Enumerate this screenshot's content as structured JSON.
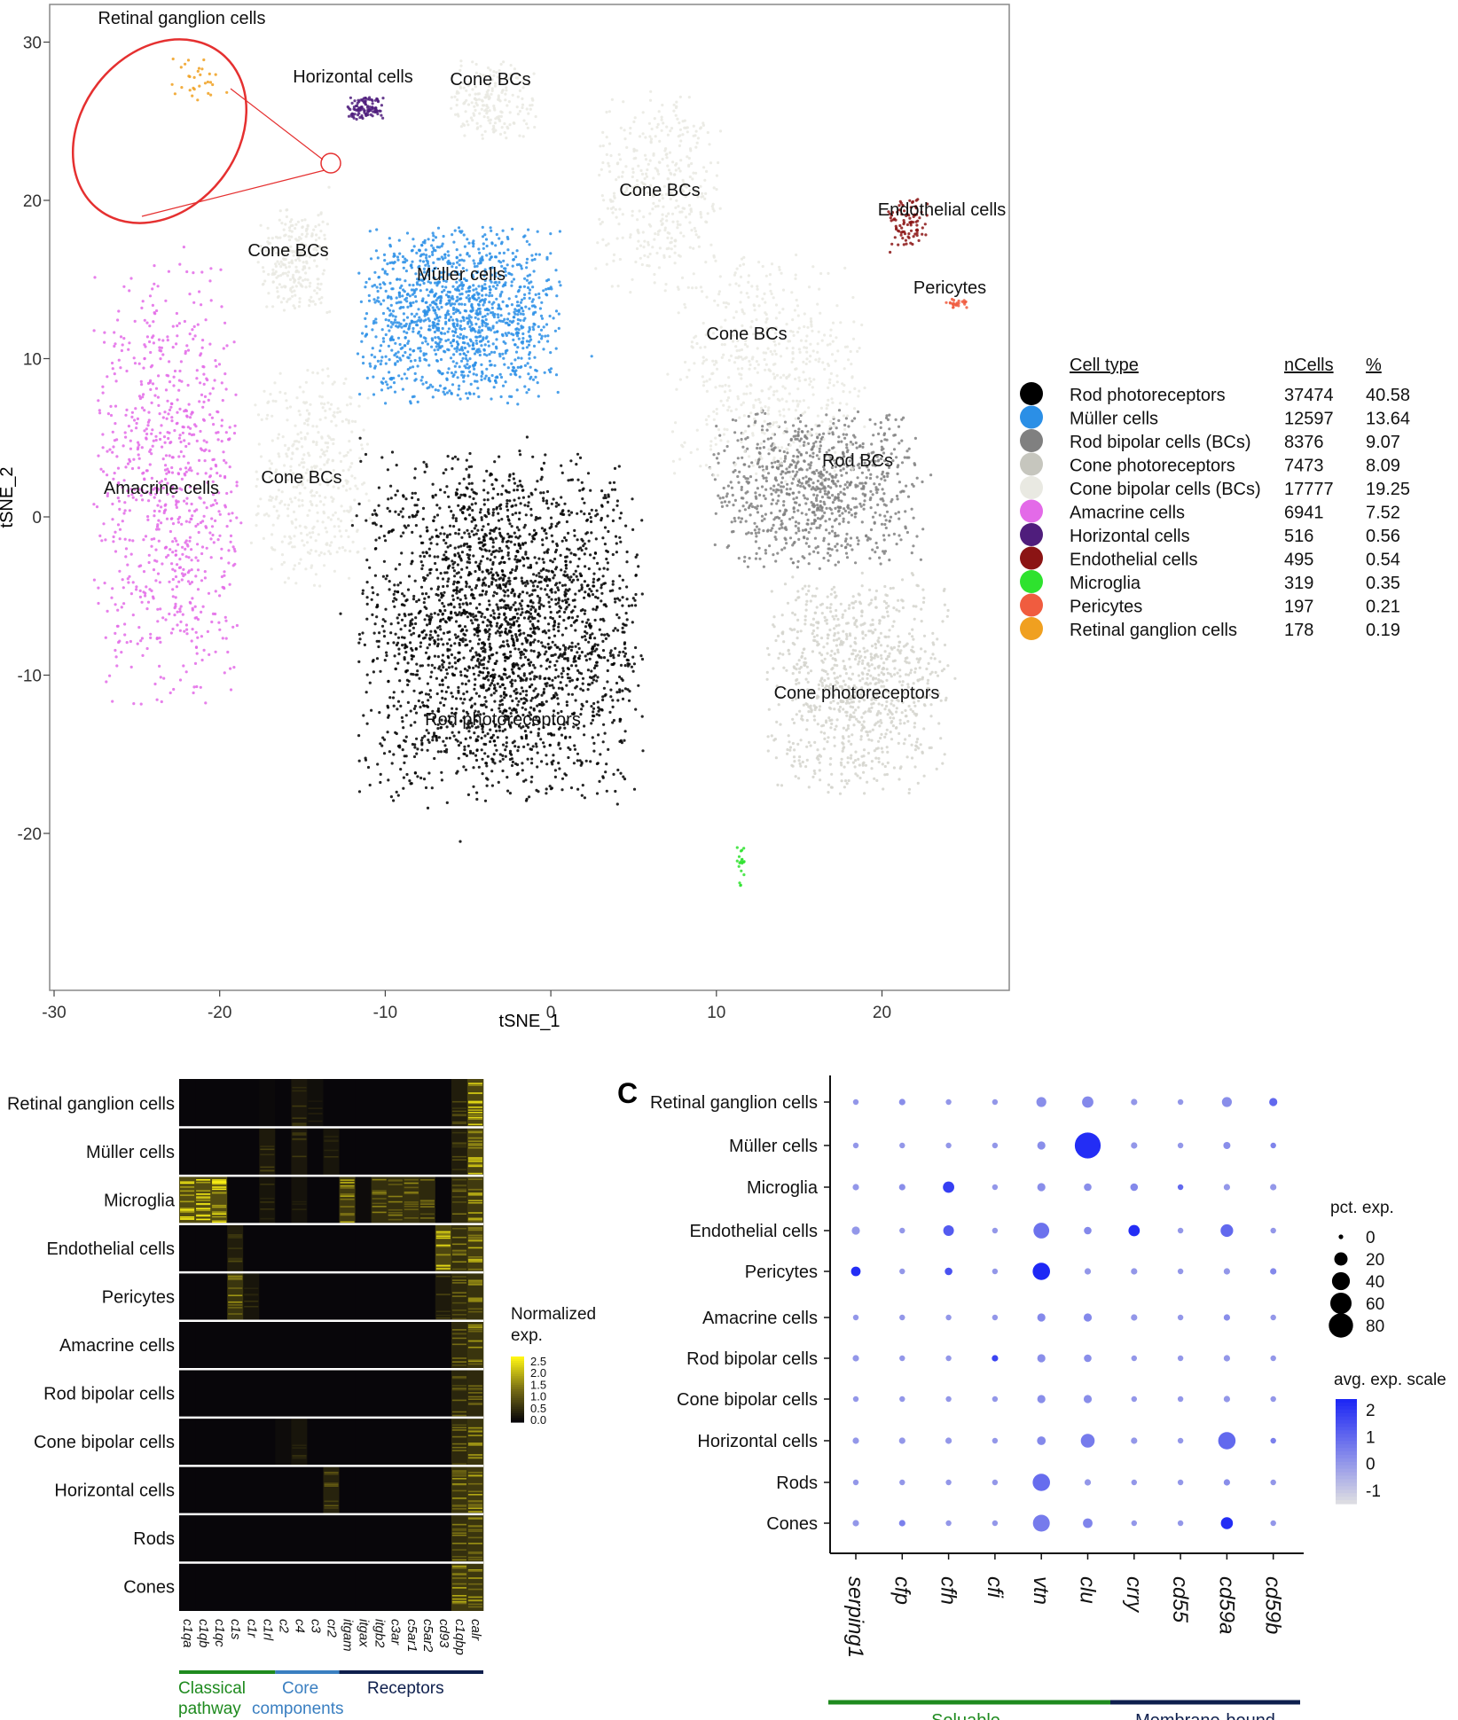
{
  "chart_data": [
    {
      "type": "scatter",
      "xlabel": "tSNE_1",
      "ylabel": "tSNE_2",
      "xlim": [
        -30,
        28
      ],
      "ylim": [
        -29,
        32
      ],
      "xticks": [
        -30,
        -20,
        -10,
        0,
        10,
        20
      ],
      "yticks": [
        -20,
        -10,
        0,
        10,
        20,
        30
      ],
      "grid": false,
      "clusters": [
        {
          "label": "Rod photoreceptors",
          "color": "#000000",
          "center": [
            -3,
            -7
          ],
          "spread": [
            8.6,
            11.2
          ],
          "n": 2600
        },
        {
          "label": "Müller cells",
          "color": "#2b8fe6",
          "center": [
            -5.5,
            12.7
          ],
          "spread": [
            6.2,
            5.6
          ],
          "n": 1300
        },
        {
          "label": "Rod BCs",
          "color": "#808080",
          "center": [
            16,
            1.8
          ],
          "spread": [
            6.5,
            5.0
          ],
          "n": 900
        },
        {
          "label": "Cone photoreceptors",
          "color": "#d4d4cc",
          "center": [
            18.5,
            -10.5
          ],
          "spread": [
            5.5,
            7.0
          ],
          "n": 900
        },
        {
          "label": "Cone BCs",
          "color": "#e9e9e2",
          "center": [
            -15.5,
            16.2
          ],
          "spread": [
            2.2,
            3.6
          ],
          "n": 250
        },
        {
          "label": "Cone BCs",
          "color": "#e9e9e2",
          "center": [
            -14.5,
            2.5
          ],
          "spread": [
            3.6,
            7.0
          ],
          "n": 400
        },
        {
          "label": "Cone BCs",
          "color": "#e9e9e2",
          "center": [
            -3.5,
            26.3
          ],
          "spread": [
            2.6,
            2.6
          ],
          "n": 200
        },
        {
          "label": "Cone BCs",
          "color": "#e9e9e2",
          "center": [
            6.5,
            20.5
          ],
          "spread": [
            3.8,
            6.4
          ],
          "n": 380
        },
        {
          "label": "Cone BCs",
          "color": "#e9e9e2",
          "center": [
            13,
            9.5
          ],
          "spread": [
            6.0,
            7.6
          ],
          "n": 520
        },
        {
          "label": "Amacrine cells",
          "color": "#e36ae8",
          "center": [
            -23,
            2
          ],
          "spread": [
            4.6,
            14.0
          ],
          "n": 800
        },
        {
          "label": "Horizontal cells",
          "color": "#4f1d7c",
          "center": [
            -11.2,
            25.8
          ],
          "spread": [
            1.1,
            0.7
          ],
          "n": 110
        },
        {
          "label": "Endothelial cells",
          "color": "#8b1414",
          "center": [
            21.5,
            18.5
          ],
          "spread": [
            1.4,
            1.8
          ],
          "n": 90
        },
        {
          "label": "Pericytes",
          "color": "#f05c3f",
          "center": [
            24.5,
            13.5
          ],
          "spread": [
            0.8,
            0.3
          ],
          "n": 25
        },
        {
          "label": "Microglia",
          "color": "#2ee22e",
          "center": [
            11.5,
            -22
          ],
          "spread": [
            0.3,
            1.5
          ],
          "n": 20
        },
        {
          "label": "Retinal ganglion cells",
          "color": "#f0a020",
          "center": [
            -21.5,
            27.5
          ],
          "spread": [
            1.5,
            1.5
          ],
          "n": 30
        }
      ],
      "annotations": [
        "Retinal ganglion cells",
        "Horizontal cells",
        "Cone BCs",
        "Cone BCs",
        "Endothelial cells",
        "Cone BCs",
        "Müller cells",
        "Pericytes",
        "Cone BCs",
        "Rod BCs",
        "Amacrine cells",
        "Cone BCs",
        "Cone photoreceptors",
        "Rod photoreceptors"
      ],
      "legend": {
        "position": "right",
        "headers": [
          "Cell type",
          "nCells",
          "%"
        ],
        "rows": [
          {
            "color": "#000000",
            "type": "Rod photoreceptors",
            "n": "37474",
            "pct": "40.58"
          },
          {
            "color": "#2b8fe6",
            "type": "Müller cells",
            "n": "12597",
            "pct": "13.64"
          },
          {
            "color": "#808080",
            "type": "Rod bipolar cells (BCs)",
            "n": "8376",
            "pct": "9.07"
          },
          {
            "color": "#c6c6be",
            "type": "Cone photoreceptors",
            "n": "7473",
            "pct": "8.09"
          },
          {
            "color": "#e9e9e2",
            "type": "Cone bipolar cells (BCs)",
            "n": "17777",
            "pct": "19.25"
          },
          {
            "color": "#e36ae8",
            "type": "Amacrine cells",
            "n": "6941",
            "pct": "7.52"
          },
          {
            "color": "#4f1d7c",
            "type": "Horizontal cells",
            "n": "516",
            "pct": "0.56"
          },
          {
            "color": "#8b1414",
            "type": "Endothelial cells",
            "n": "495",
            "pct": "0.54"
          },
          {
            "color": "#2ee22e",
            "type": "Microglia",
            "n": "319",
            "pct": "0.35"
          },
          {
            "color": "#f05c3f",
            "type": "Pericytes",
            "n": "197",
            "pct": "0.21"
          },
          {
            "color": "#f0a020",
            "type": "Retinal ganglion cells",
            "n": "178",
            "pct": "0.19"
          }
        ]
      }
    },
    {
      "type": "heatmap",
      "rows": [
        "Retinal ganglion cells",
        "Müller cells",
        "Microglia",
        "Endothelial cells",
        "Pericytes",
        "Amacrine cells",
        "Rod bipolar cells",
        "Cone bipolar cells",
        "Horizontal cells",
        "Rods",
        "Cones"
      ],
      "columns": [
        "c1qa",
        "c1qb",
        "c1qc",
        "c1s",
        "c1r",
        "c1rl",
        "c2",
        "c4",
        "c3",
        "cr2",
        "itgam",
        "itgax",
        "itgb2",
        "c3ar",
        "c5ar1",
        "c5ar2",
        "cd93",
        "c1qbp",
        "calr"
      ],
      "groups": [
        {
          "label": "Classical pathway",
          "color": "#1e8a1e"
        },
        {
          "label": "Core components",
          "color": "#3a7fc1"
        },
        {
          "label": "Receptors",
          "color": "#0e1f4d"
        }
      ],
      "colorbar": {
        "title": "Normalized exp.",
        "ticks": [
          "2.5",
          "2.0",
          "1.5",
          "1.0",
          "0.5",
          "0.0"
        ],
        "range": [
          0,
          2.5
        ]
      },
      "values": [
        [
          0,
          0,
          0,
          0,
          0,
          0.1,
          0,
          0.6,
          0.3,
          0,
          0,
          0,
          0,
          0,
          0,
          0,
          0,
          0.8,
          2.2
        ],
        [
          0,
          0,
          0,
          0,
          0,
          0.7,
          0,
          0.6,
          0,
          0.5,
          0,
          0,
          0,
          0,
          0,
          0,
          0,
          0.8,
          2.1
        ],
        [
          2.4,
          2.4,
          2.4,
          0,
          0,
          0.5,
          0,
          0.4,
          0,
          0,
          1.8,
          0.2,
          1.4,
          1.4,
          1.5,
          1.2,
          0,
          1.2,
          1.8
        ],
        [
          0,
          0,
          0,
          0.8,
          0,
          0,
          0,
          0,
          0,
          0,
          0,
          0,
          0,
          0,
          0,
          0,
          2.2,
          1.4,
          1.9
        ],
        [
          0,
          0,
          0,
          1.6,
          0.5,
          0,
          0,
          0,
          0,
          0,
          0,
          0,
          0,
          0,
          0,
          0,
          0.7,
          1.2,
          1.5
        ],
        [
          0,
          0,
          0,
          0,
          0,
          0,
          0,
          0,
          0,
          0,
          0,
          0,
          0,
          0,
          0,
          0,
          0,
          1.2,
          1.6
        ],
        [
          0,
          0,
          0,
          0,
          0,
          0,
          0,
          0,
          0,
          0,
          0,
          0,
          0,
          0,
          0,
          0,
          0,
          1.1,
          1.2
        ],
        [
          0,
          0,
          0,
          0,
          0,
          0,
          0.2,
          0.5,
          0,
          0,
          0,
          0,
          0,
          0,
          0,
          0,
          0,
          1.2,
          1.6
        ],
        [
          0,
          0,
          0,
          0,
          0,
          0,
          0,
          0,
          0,
          1.0,
          0,
          0,
          0,
          0,
          0,
          0,
          0,
          1.6,
          1.8
        ],
        [
          0,
          0,
          0,
          0,
          0,
          0,
          0,
          0,
          0,
          0,
          0,
          0,
          0,
          0,
          0,
          0,
          0,
          1.4,
          1.6
        ],
        [
          0,
          0,
          0,
          0,
          0,
          0,
          0,
          0,
          0,
          0,
          0,
          0,
          0,
          0,
          0,
          0,
          0,
          1.8,
          1.7
        ]
      ]
    },
    {
      "type": "scatter",
      "panel_label": "C",
      "rows": [
        "Retinal ganglion cells",
        "Müller cells",
        "Microglia",
        "Endothelial cells",
        "Pericytes",
        "Amacrine cells",
        "Rod bipolar cells",
        "Cone bipolar cells",
        "Horizontal cells",
        "Rods",
        "Cones"
      ],
      "genes": [
        "serping1",
        "cfp",
        "cfh",
        "cfi",
        "vtn",
        "clu",
        "crry",
        "cd55",
        "cd59a",
        "cd59b"
      ],
      "groups": [
        {
          "label": "Soluable",
          "color": "#1e8a1e"
        },
        {
          "label": "Membrane-bound",
          "color": "#0e1f4d"
        }
      ],
      "size_legend": {
        "title": "pct. exp.",
        "ticks": [
          0,
          20,
          40,
          60,
          80
        ]
      },
      "color_legend": {
        "title": "avg. exp. scale",
        "ticks": [
          2,
          1,
          0,
          -1
        ],
        "range": [
          -1.5,
          2.4
        ]
      },
      "pct": [
        [
          2,
          3,
          2,
          2,
          10,
          14,
          3,
          2,
          10,
          6
        ],
        [
          2,
          2,
          2,
          2,
          6,
          92,
          3,
          2,
          4,
          2
        ],
        [
          3,
          3,
          14,
          2,
          6,
          5,
          5,
          2,
          3,
          3
        ],
        [
          6,
          2,
          12,
          2,
          30,
          5,
          14,
          2,
          18,
          2
        ],
        [
          9,
          2,
          5,
          2,
          38,
          3,
          3,
          2,
          3,
          3
        ],
        [
          2,
          2,
          2,
          2,
          6,
          6,
          3,
          2,
          3,
          2
        ],
        [
          3,
          2,
          2,
          3,
          6,
          5,
          2,
          2,
          3,
          2
        ],
        [
          2,
          2,
          2,
          2,
          6,
          6,
          2,
          2,
          3,
          2
        ],
        [
          3,
          3,
          3,
          2,
          7,
          22,
          3,
          2,
          38,
          2
        ],
        [
          2,
          2,
          2,
          2,
          38,
          3,
          2,
          2,
          3,
          2
        ],
        [
          3,
          3,
          2,
          2,
          35,
          9,
          2,
          2,
          16,
          2
        ]
      ],
      "avg": [
        [
          0,
          0.2,
          0,
          0,
          0.2,
          0.3,
          0,
          0,
          0.2,
          1.0
        ],
        [
          0,
          0,
          0,
          0,
          0.2,
          2.3,
          0,
          0,
          0.2,
          0.4
        ],
        [
          0,
          0.2,
          1.9,
          0,
          0.2,
          0.2,
          0.3,
          1.0,
          0,
          0
        ],
        [
          0,
          0,
          1.3,
          0,
          0.8,
          0.3,
          2.3,
          0,
          1.0,
          0
        ],
        [
          2.3,
          0,
          1.5,
          0,
          2.4,
          0,
          0,
          0,
          0,
          0.3
        ],
        [
          0,
          0,
          0,
          0,
          0.3,
          0.3,
          0,
          0,
          0.2,
          0
        ],
        [
          0,
          0,
          0,
          1.8,
          0.2,
          0.2,
          0,
          0,
          0,
          0
        ],
        [
          0,
          0,
          0,
          0,
          0.2,
          0.2,
          0,
          0,
          0,
          0
        ],
        [
          0,
          0,
          0,
          0,
          0.3,
          0.6,
          0,
          0,
          1.0,
          0.5
        ],
        [
          0,
          0,
          0,
          0,
          0.9,
          0,
          0,
          0,
          0.2,
          0
        ],
        [
          0,
          0.5,
          0,
          0,
          0.6,
          0.4,
          0,
          0,
          2.3,
          0
        ]
      ]
    }
  ]
}
